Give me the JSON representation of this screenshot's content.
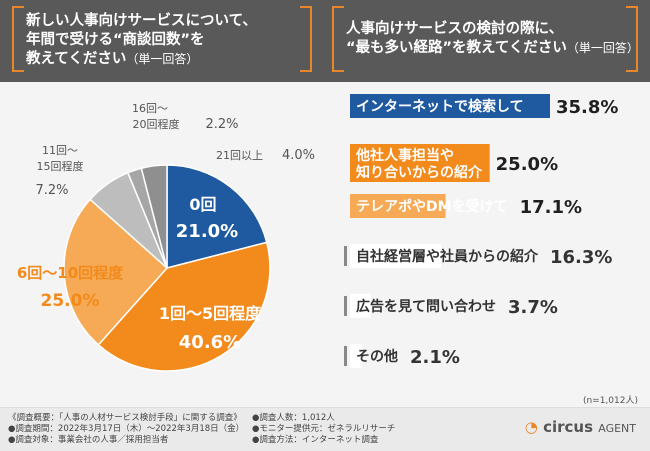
{
  "header": {
    "left_title": [
      "新しい人事向けサービスについて、",
      "年間で受ける“商談回数”を",
      "教えてください"
    ],
    "left_note": "（単一回答）",
    "right_title": [
      "人事向けサービスの検討の際に、",
      "“最も多い経路”を教えてください"
    ],
    "right_note": "（単一回答）"
  },
  "chart_data": [
    {
      "type": "pie",
      "categories": [
        "0回",
        "1回〜5回程度",
        "6回〜10回程度",
        "11回〜15回程度",
        "16回〜20回程度",
        "21回以上"
      ],
      "values": [
        21.0,
        40.6,
        25.0,
        7.2,
        2.2,
        4.0
      ],
      "value_labels": [
        "21.0%",
        "40.6%",
        "25.0%",
        "7.2%",
        "2.2%",
        "4.0%"
      ],
      "colors": [
        "#1f5aa0",
        "#f28a1c",
        "#f6aa55",
        "#bdbdbd",
        "#a6a6a6",
        "#8f8f8f"
      ]
    },
    {
      "type": "bar",
      "categories": [
        "インターネットで検索して",
        "他社人事担当や知り合いからの紹介",
        "テレアポやDMを受けて",
        "自社経営層や社員からの紹介",
        "広告を見て問い合わせ",
        "その他"
      ],
      "category_lines": [
        [
          "インターネットで検索して"
        ],
        [
          "他社人事担当や",
          "知り合いからの紹介"
        ],
        [
          "テレアポやDMを受けて"
        ],
        [
          "自社経営層や社員からの紹介"
        ],
        [
          "広告を見て問い合わせ"
        ],
        [
          "その他"
        ]
      ],
      "values": [
        35.8,
        25.0,
        17.1,
        16.3,
        3.7,
        2.1
      ],
      "value_labels": [
        "35.8%",
        "25.0%",
        "17.1%",
        "16.3%",
        "3.7%",
        "2.1%"
      ],
      "colors": [
        "#1f5aa0",
        "#f28a1c",
        "#f6aa55",
        "#ffffff",
        "#ffffff",
        "#ffffff"
      ],
      "text_colors": [
        "#ffffff",
        "#ffffff",
        "#ffffff",
        "#333333",
        "#333333",
        "#333333"
      ]
    }
  ],
  "pie_labels": {
    "outside": [
      "16回〜",
      "20回程度",
      "21回以上",
      "11回〜",
      "15回程度"
    ]
  },
  "n_note": "(n=1,012人)",
  "footer": {
    "col1": [
      "《調査概要：「人事の人材サービス検討手段」に関する調査》",
      "●調査期間：2022年3月17日（木）〜2022年3月18日（金）",
      "●調査対象：事業会社の人事／採用担当者"
    ],
    "col2": [
      "●調査人数：1,012人",
      "●モニター提供元：ゼネラルリサーチ",
      "●調査方法：インターネット調査"
    ],
    "logo_main": "circus",
    "logo_sub": "AGENT"
  }
}
